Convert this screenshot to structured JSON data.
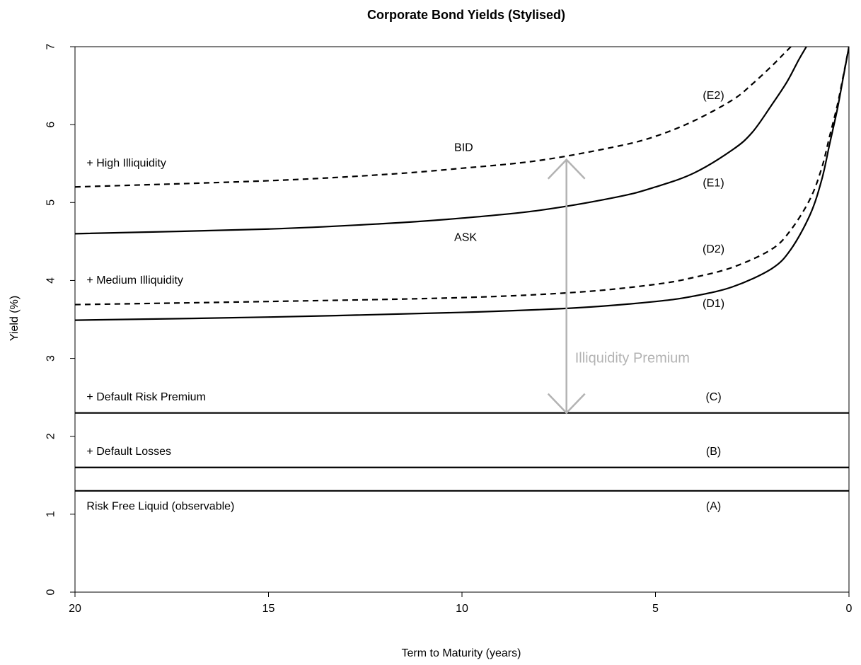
{
  "chart_data": {
    "type": "line",
    "title": "Corporate Bond Yields (Stylised)",
    "xlabel": "Term to Maturity (years)",
    "ylabel": "Yield (%)",
    "xlim": [
      20,
      0
    ],
    "ylim": [
      0,
      7
    ],
    "x_reversed": true,
    "grid": false,
    "legend": "none",
    "xticks": [
      20,
      15,
      10,
      5,
      0
    ],
    "yticks": [
      0,
      1,
      2,
      3,
      4,
      5,
      6,
      7
    ],
    "series": [
      {
        "name": "Risk Free Liquid (observable)",
        "style": "solid",
        "x": [
          20,
          0
        ],
        "y": [
          1.3,
          1.3
        ]
      },
      {
        "name": "+ Default Losses",
        "style": "solid",
        "x": [
          20,
          0
        ],
        "y": [
          1.6,
          1.6
        ]
      },
      {
        "name": "+ Default Risk Premium",
        "style": "solid",
        "x": [
          20,
          0
        ],
        "y": [
          2.3,
          2.3
        ]
      },
      {
        "name": "(D1)",
        "style": "solid",
        "x": [
          20,
          15,
          10,
          7,
          5,
          4,
          3,
          2,
          1.5,
          1,
          0.7,
          0.5,
          0.3,
          0.15,
          0
        ],
        "y": [
          3.49,
          3.53,
          3.59,
          3.65,
          3.73,
          3.8,
          3.92,
          4.15,
          4.4,
          4.85,
          5.3,
          5.75,
          6.2,
          6.6,
          7.0
        ]
      },
      {
        "name": "(D2)",
        "style": "dashed",
        "x": [
          20,
          15,
          10,
          7,
          5,
          4,
          3,
          2,
          1.5,
          1,
          0.7,
          0.5,
          0.3,
          0.15,
          0
        ],
        "y": [
          3.69,
          3.73,
          3.78,
          3.85,
          3.95,
          4.04,
          4.17,
          4.4,
          4.65,
          5.05,
          5.45,
          5.85,
          6.25,
          6.62,
          7.0
        ]
      },
      {
        "name": "(E1)",
        "style": "solid",
        "x": [
          20,
          15,
          12,
          10,
          8,
          6,
          5,
          4,
          3,
          2.5,
          2,
          1.6,
          1.3,
          1.1
        ],
        "y": [
          4.6,
          4.66,
          4.73,
          4.8,
          4.9,
          5.07,
          5.2,
          5.38,
          5.68,
          5.9,
          6.25,
          6.55,
          6.83,
          7.0
        ]
      },
      {
        "name": "(E2)",
        "style": "dashed",
        "x": [
          20,
          15,
          12,
          10,
          8,
          6,
          5,
          4,
          3,
          2.5,
          2,
          1.7,
          1.5
        ],
        "y": [
          5.2,
          5.28,
          5.36,
          5.44,
          5.54,
          5.72,
          5.85,
          6.05,
          6.32,
          6.52,
          6.75,
          6.9,
          7.0
        ]
      }
    ],
    "annotations": [
      {
        "text": "+ High Illiquidity",
        "x": 19.7,
        "y": 5.5,
        "anchor": "start"
      },
      {
        "text": "BID",
        "x": 10.2,
        "y": 5.7,
        "anchor": "start"
      },
      {
        "text": "ASK",
        "x": 10.2,
        "y": 4.55,
        "anchor": "start"
      },
      {
        "text": "+ Medium Illiquidity",
        "x": 19.7,
        "y": 4.0,
        "anchor": "start"
      },
      {
        "text": "+ Default Risk Premium",
        "x": 19.7,
        "y": 2.5,
        "anchor": "start"
      },
      {
        "text": "+ Default Losses",
        "x": 19.7,
        "y": 1.8,
        "anchor": "start"
      },
      {
        "text": "Risk Free Liquid (observable)",
        "x": 19.7,
        "y": 1.1,
        "anchor": "start"
      },
      {
        "text": "(E2)",
        "x": 3.5,
        "y": 6.37,
        "anchor": "middle"
      },
      {
        "text": "(E1)",
        "x": 3.5,
        "y": 5.25,
        "anchor": "middle"
      },
      {
        "text": "(D2)",
        "x": 3.5,
        "y": 4.4,
        "anchor": "middle"
      },
      {
        "text": "(D1)",
        "x": 3.5,
        "y": 3.7,
        "anchor": "middle"
      },
      {
        "text": "(C)",
        "x": 3.5,
        "y": 2.5,
        "anchor": "middle"
      },
      {
        "text": "(B)",
        "x": 3.5,
        "y": 1.8,
        "anchor": "middle"
      },
      {
        "text": "(A)",
        "x": 3.5,
        "y": 1.1,
        "anchor": "middle"
      }
    ],
    "premium_arrow": {
      "label": "Illiquidity Premium",
      "x": 7.3,
      "y_from": 2.3,
      "y_to": 5.55,
      "label_y": 3.0,
      "color": "#b3b3b3"
    },
    "line_color": "#000000"
  }
}
